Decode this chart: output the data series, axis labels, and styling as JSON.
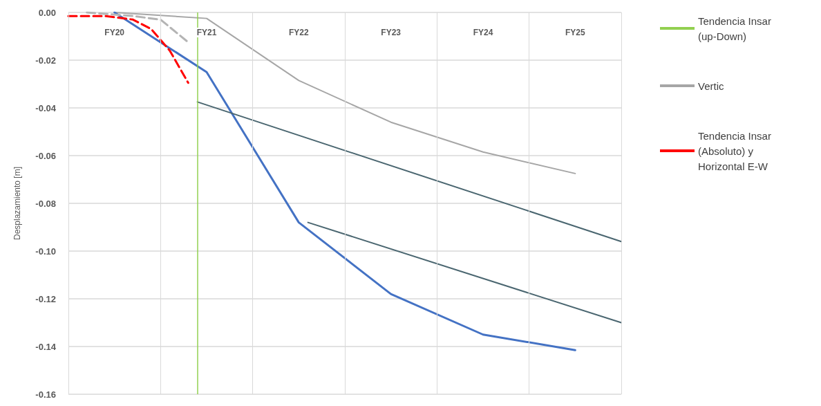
{
  "chart_data": {
    "type": "line",
    "ylabel": "Desplazamiento [m]",
    "categories": [
      null,
      null,
      null,
      null,
      null,
      "FY20",
      null,
      null,
      null,
      null,
      null,
      null,
      null,
      null,
      null,
      "FY21",
      null,
      null,
      null,
      null,
      null,
      null,
      null,
      null,
      null,
      "FY22",
      null,
      null,
      null,
      null,
      null,
      null,
      null,
      null,
      null,
      "FY23",
      null,
      null,
      null,
      null,
      null,
      null,
      null,
      null,
      null,
      "FY24",
      null,
      null,
      null,
      null,
      null,
      null,
      null,
      null,
      null,
      "FY25",
      null,
      null,
      null,
      null,
      null
    ],
    "ylim": [
      -0.16,
      0
    ],
    "yticks": [
      -0.16,
      -0.14,
      -0.12,
      {
        "value": -0.1,
        "label": "-0.10"
      },
      -0.08,
      -0.06,
      -0.04,
      -0.02,
      {
        "value": 0,
        "label": "0.00"
      }
    ],
    "grid": true,
    "legend": "right",
    "marker": "none",
    "series": [
      {
        "name": "Tendencia Insar (up-Down)",
        "color": "#92d050",
        "line_style": "solid",
        "values": [
          null,
          null,
          null,
          null,
          null,
          null,
          null,
          null,
          null,
          null,
          null,
          null,
          null,
          null,
          null,
          null,
          null,
          null,
          null,
          null,
          null,
          null,
          null,
          null,
          null,
          null,
          null,
          null,
          null,
          null,
          null,
          null,
          null,
          null,
          null,
          null,
          null,
          null,
          null,
          null,
          null,
          null,
          null,
          null,
          null,
          null,
          null,
          null,
          null,
          null,
          null,
          null,
          null,
          null,
          null,
          null,
          null,
          null,
          null,
          null,
          null
        ]
      },
      {
        "name": "Vertic",
        "color": "#a6a6a6",
        "line_style": "solid",
        "values": [
          null,
          null,
          null,
          null,
          null,
          0,
          null,
          null,
          null,
          null,
          null,
          null,
          null,
          null,
          null,
          -0.0025,
          null,
          null,
          null,
          null,
          null,
          null,
          null,
          null,
          null,
          -0.0285,
          null,
          null,
          null,
          null,
          null,
          null,
          null,
          null,
          null,
          -0.046,
          null,
          null,
          null,
          null,
          null,
          null,
          null,
          null,
          null,
          -0.0585,
          null,
          null,
          null,
          null,
          null,
          null,
          null,
          null,
          null,
          -0.0675,
          null,
          null,
          null,
          null,
          null
        ]
      },
      {
        "color": "#4472c4",
        "line_style": "solid",
        "values": [
          null,
          null,
          null,
          null,
          null,
          0,
          null,
          null,
          null,
          null,
          null,
          null,
          null,
          null,
          null,
          -0.025,
          null,
          null,
          null,
          null,
          null,
          null,
          null,
          null,
          null,
          -0.088,
          null,
          null,
          null,
          null,
          null,
          null,
          null,
          null,
          null,
          -0.118,
          null,
          null,
          null,
          null,
          null,
          null,
          null,
          null,
          null,
          -0.135,
          null,
          null,
          null,
          null,
          null,
          null,
          null,
          null,
          null,
          -0.1415,
          null,
          null,
          null,
          null,
          null
        ]
      },
      {
        "color": "#b4b4b4",
        "line_style": "dashed",
        "values": [
          null,
          null,
          0,
          null,
          null,
          null,
          null,
          -0.0015,
          null,
          null,
          -0.003,
          null,
          null,
          -0.0125,
          null,
          null,
          null,
          null,
          null,
          null,
          null,
          null,
          null,
          null,
          null,
          null,
          null,
          null,
          null,
          null,
          null,
          null,
          null,
          null,
          null,
          null,
          null,
          null,
          null,
          null,
          null,
          null,
          null,
          null,
          null,
          null,
          null,
          null,
          null,
          null,
          null,
          null,
          null,
          null,
          null,
          null,
          null,
          null,
          null,
          null,
          null
        ]
      },
      {
        "name": "Tendencia Insar (Absoluto) y Horizontal E-W",
        "color": "#ff0000",
        "line_style": "dashed",
        "values": [
          -0.0015,
          null,
          null,
          null,
          -0.0015,
          null,
          null,
          -0.003,
          null,
          -0.007,
          null,
          -0.016,
          null,
          -0.0295,
          null,
          null,
          null,
          null,
          null,
          null,
          null,
          null,
          null,
          null,
          null,
          null,
          null,
          null,
          null,
          null,
          null,
          null,
          null,
          null,
          null,
          null,
          null,
          null,
          null,
          null,
          null,
          null,
          null,
          null,
          null,
          null,
          null,
          null,
          null,
          null,
          null,
          null,
          null,
          null,
          null,
          null,
          null,
          null,
          null,
          null,
          null
        ]
      },
      {
        "color": "#4a6670",
        "line_style": "solid",
        "values": [
          null,
          null,
          null,
          null,
          null,
          null,
          null,
          null,
          null,
          null,
          null,
          null,
          null,
          null,
          -0.0375,
          null,
          null,
          null,
          null,
          null,
          null,
          null,
          null,
          null,
          null,
          null,
          null,
          null,
          null,
          null,
          null,
          null,
          null,
          null,
          null,
          null,
          null,
          null,
          null,
          null,
          null,
          null,
          null,
          null,
          null,
          null,
          null,
          null,
          null,
          null,
          null,
          null,
          null,
          null,
          null,
          null,
          null,
          null,
          null,
          null,
          -0.096
        ]
      },
      {
        "color": "#4a6670",
        "line_style": "solid",
        "values": [
          null,
          null,
          null,
          null,
          null,
          null,
          null,
          null,
          null,
          null,
          null,
          null,
          null,
          null,
          null,
          null,
          null,
          null,
          null,
          null,
          null,
          null,
          null,
          null,
          null,
          null,
          -0.088,
          null,
          null,
          null,
          null,
          null,
          null,
          null,
          null,
          null,
          null,
          null,
          null,
          null,
          null,
          null,
          null,
          null,
          null,
          null,
          null,
          null,
          null,
          null,
          null,
          null,
          null,
          null,
          null,
          null,
          null,
          null,
          null,
          null,
          -0.13
        ]
      }
    ]
  }
}
